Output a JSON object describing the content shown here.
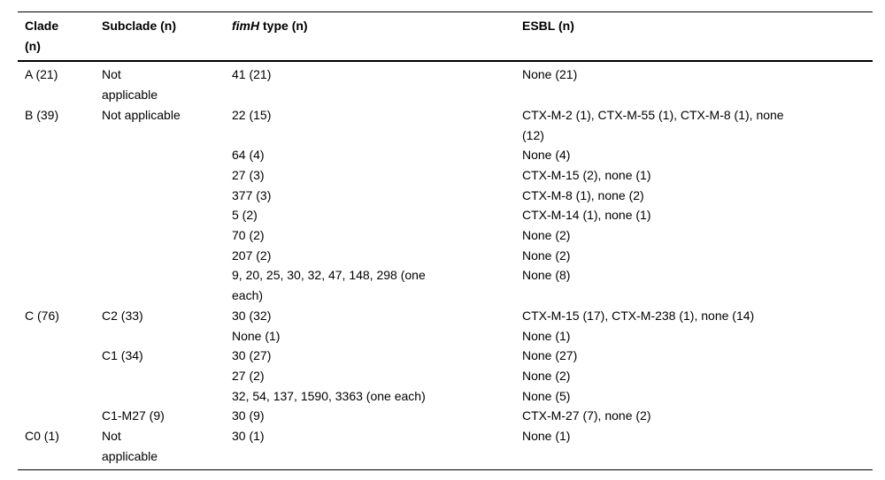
{
  "table": {
    "header": {
      "clade": "Clade\n(n)",
      "subclade": "Subclade (n)",
      "fimh_italic": "fimH",
      "fimh_rest": " type (n)",
      "esbl": "ESBL (n)"
    },
    "rows": [
      {
        "clade": "A (21)",
        "subclade": "Not\napplicable",
        "fimh": "41 (21)",
        "esbl": "None (21)"
      },
      {
        "clade": "B (39)",
        "subclade": "Not applicable",
        "fimh": "22 (15)",
        "esbl": "CTX-M-2 (1), CTX-M-55 (1), CTX-M-8 (1), none\n(12)"
      },
      {
        "clade": "",
        "subclade": "",
        "fimh": "64 (4)",
        "esbl": "None (4)"
      },
      {
        "clade": "",
        "subclade": "",
        "fimh": "27 (3)",
        "esbl": "CTX-M-15 (2), none (1)"
      },
      {
        "clade": "",
        "subclade": "",
        "fimh": "377 (3)",
        "esbl": "CTX-M-8 (1), none (2)"
      },
      {
        "clade": "",
        "subclade": "",
        "fimh": "5 (2)",
        "esbl": "CTX-M-14 (1), none (1)"
      },
      {
        "clade": "",
        "subclade": "",
        "fimh": "70 (2)",
        "esbl": "None (2)"
      },
      {
        "clade": "",
        "subclade": "",
        "fimh": "207 (2)",
        "esbl": "None (2)"
      },
      {
        "clade": "",
        "subclade": "",
        "fimh": "9, 20, 25, 30, 32, 47, 148, 298 (one\neach)",
        "esbl": "None (8)"
      },
      {
        "clade": "C (76)",
        "subclade": "C2 (33)",
        "fimh": "30 (32)",
        "esbl": "CTX-M-15 (17), CTX-M-238 (1), none (14)"
      },
      {
        "clade": "",
        "subclade": "",
        "fimh": "None (1)",
        "esbl": "None (1)"
      },
      {
        "clade": "",
        "subclade": "C1 (34)",
        "fimh": "30 (27)",
        "esbl": "None (27)"
      },
      {
        "clade": "",
        "subclade": "",
        "fimh": "27 (2)",
        "esbl": "None (2)"
      },
      {
        "clade": "",
        "subclade": "",
        "fimh": "32, 54, 137, 1590, 3363 (one each)",
        "esbl": "None (5)"
      },
      {
        "clade": "",
        "subclade": "C1-M27 (9)",
        "fimh": "30 (9)",
        "esbl": "CTX-M-27 (7), none (2)"
      },
      {
        "clade": "C0 (1)",
        "subclade": "Not\napplicable",
        "fimh": "30 (1)",
        "esbl": "None (1)"
      }
    ]
  }
}
